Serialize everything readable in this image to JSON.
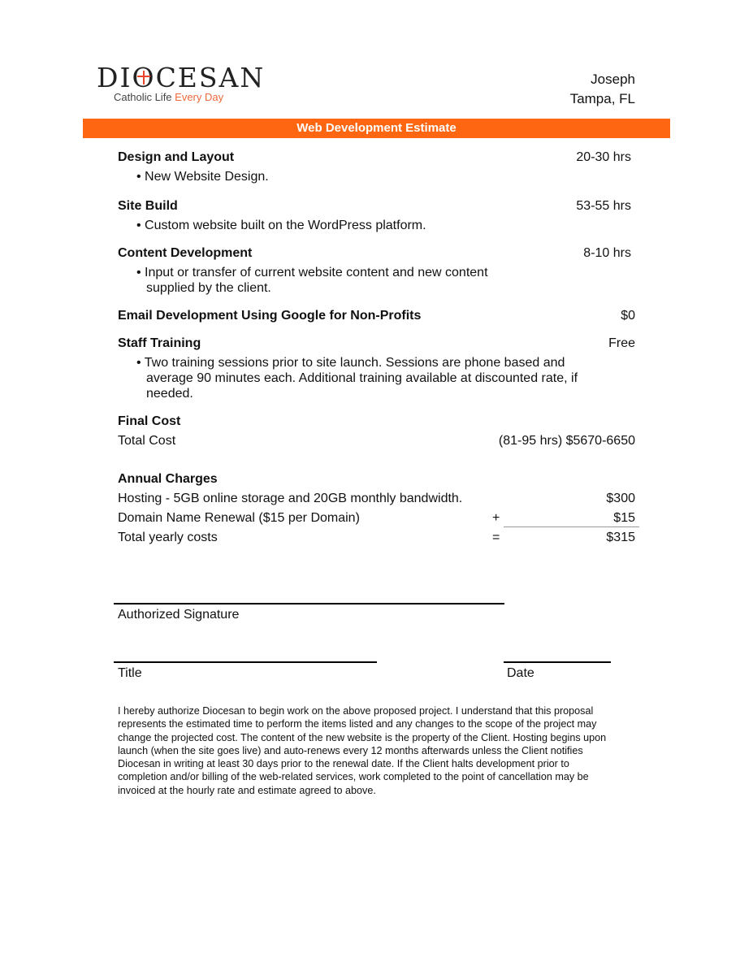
{
  "logo": {
    "name_pre": "DI",
    "name_o": "O",
    "name_post": "CESAN",
    "tagline_a": "Catholic Life ",
    "tagline_b": "Every Day"
  },
  "client": {
    "name": "Joseph",
    "location": "Tampa, FL"
  },
  "banner": "Web Development Estimate",
  "items": [
    {
      "title": "Design and Layout",
      "value": "20-30  hrs",
      "bullet": "New Website Design."
    },
    {
      "title": "Site Build",
      "value": "53-55  hrs",
      "bullet": "Custom website built on the WordPress platform."
    },
    {
      "title": "Content Development",
      "value": "8-10  hrs",
      "bullet_lines": [
        "Input or transfer of current website content and new content",
        "supplied by the client."
      ]
    },
    {
      "title": "Email Development Using Google for Non-Profits",
      "value": "$0"
    },
    {
      "title": "Staff Training",
      "value": "Free",
      "bullet_lines": [
        "Two training sessions prior to site launch. Sessions are phone based and",
        "average 90 minutes each. Additional training available at discounted rate, if",
        "needed."
      ]
    }
  ],
  "final": {
    "heading": "Final Cost",
    "label": "Total Cost",
    "value": "(81-95 hrs) $5670-6650"
  },
  "annual": {
    "heading": "Annual Charges",
    "rows": [
      {
        "label": "Hosting - 5GB online storage and 20GB monthly bandwidth.",
        "op": "",
        "value": "$300"
      },
      {
        "label": "Domain Name Renewal ($15 per Domain)",
        "op": "+",
        "value": "$15"
      },
      {
        "label": "Total yearly costs",
        "op": "=",
        "value": "$315"
      }
    ]
  },
  "signature": {
    "authorized": "Authorized Signature",
    "title": "Title",
    "date": "Date"
  },
  "fine_print": [
    "I hereby authorize Diocesan to begin work on the above proposed project. I understand that this proposal",
    "represents the estimated time to perform the items listed and any changes to the scope of the project may",
    "change the projected cost. The content of the new website is the property of the Client. Hosting begins upon",
    "launch (when the site goes live) and auto-renews every 12 months afterwards unless the Client notifies",
    "Diocesan in writing at least 30 days prior to the renewal date. If the Client halts development prior to",
    "completion and/or billing of the web-related services, work completed to the point of cancellation may be",
    "invoiced at the hourly rate and estimate agreed to above."
  ],
  "colors": {
    "accent": "#ff6611",
    "logo_accent": "#ee6a3c"
  }
}
